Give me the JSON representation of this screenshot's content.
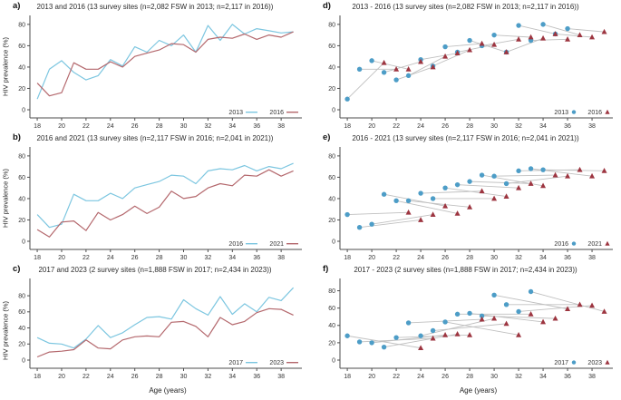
{
  "figure": {
    "xlabel": "Age (years)",
    "ylabel": "HIV prevalence (%)",
    "x_ticks": [
      18,
      20,
      22,
      24,
      26,
      28,
      30,
      32,
      34,
      36,
      38
    ],
    "y_ticks": [
      0,
      20,
      40,
      60,
      80
    ],
    "colors": {
      "line_blue": "#7cc6e0",
      "line_red": "#b4686d",
      "point_blue": "#4d9dc7",
      "point_red": "#9d3540",
      "link_gray": "#c0c0c0",
      "axis": "#4d4d4d",
      "tick_label": "#333333"
    }
  },
  "chart_data": [
    {
      "panel_label": "a)",
      "type": "line",
      "title": "2013 and 2016 (13 survey sites (n=2,082 FSW in 2013; n=2,117 in 2016))",
      "xlabel": "Age (years)",
      "ylabel": "HIV prevalence (%)",
      "ylim": [
        0,
        85
      ],
      "x": [
        18,
        19,
        20,
        21,
        22,
        23,
        24,
        25,
        26,
        27,
        28,
        29,
        30,
        31,
        32,
        33,
        34,
        35,
        36,
        37,
        38,
        39
      ],
      "series": [
        {
          "name": "2013",
          "color": "#7cc6e0",
          "values": [
            10,
            38,
            46,
            35,
            28,
            32,
            47,
            41,
            59,
            54,
            65,
            60,
            70,
            54,
            79,
            65,
            80,
            71,
            76,
            74,
            72,
            73
          ]
        },
        {
          "name": "2016",
          "color": "#b4686d",
          "values": [
            25,
            13,
            16,
            44,
            38,
            38,
            45,
            40,
            50,
            53,
            56,
            62,
            61,
            54,
            66,
            68,
            67,
            71,
            66,
            70,
            68,
            73
          ]
        }
      ]
    },
    {
      "panel_label": "b)",
      "type": "line",
      "title": "2016 and 2021 (13 survey sites (n=2,117 FSW in 2016; n=2,041 in 2021))",
      "xlabel": "Age (years)",
      "ylabel": "HIV prevalence (%)",
      "ylim": [
        0,
        85
      ],
      "x": [
        18,
        19,
        20,
        21,
        22,
        23,
        24,
        25,
        26,
        27,
        28,
        29,
        30,
        31,
        32,
        33,
        34,
        35,
        36,
        37,
        38,
        39
      ],
      "series": [
        {
          "name": "2016",
          "color": "#7cc6e0",
          "values": [
            25,
            13,
            16,
            44,
            38,
            38,
            45,
            40,
            50,
            53,
            56,
            62,
            61,
            54,
            66,
            68,
            67,
            71,
            66,
            70,
            68,
            73
          ]
        },
        {
          "name": "2021",
          "color": "#b4686d",
          "values": [
            11,
            4,
            18,
            19,
            10,
            27,
            20,
            25,
            33,
            26,
            32,
            47,
            40,
            42,
            50,
            54,
            52,
            62,
            61,
            67,
            61,
            66
          ]
        }
      ]
    },
    {
      "panel_label": "c)",
      "type": "line",
      "title": "2017 and 2023 (2 survey sites (n=1,888 FSW in 2017; n=2,434 in 2023))",
      "xlabel": "Age (years)",
      "ylabel": "HIV prevalence (%)",
      "ylim": [
        0,
        97
      ],
      "x": [
        18,
        19,
        20,
        21,
        22,
        23,
        24,
        25,
        26,
        27,
        28,
        29,
        30,
        31,
        32,
        33,
        34,
        35,
        36,
        37,
        38,
        39
      ],
      "series": [
        {
          "name": "2017",
          "color": "#7cc6e0",
          "values": [
            28,
            21,
            20,
            15,
            26,
            43,
            28,
            34,
            44,
            53,
            54,
            51,
            75,
            64,
            56,
            79,
            57,
            70,
            60,
            78,
            74,
            90
          ]
        },
        {
          "name": "2023",
          "color": "#b4686d",
          "values": [
            4,
            10,
            11,
            13,
            25,
            15,
            14,
            25,
            29,
            30,
            29,
            47,
            48,
            42,
            29,
            53,
            44,
            48,
            59,
            64,
            63,
            56
          ]
        }
      ]
    },
    {
      "panel_label": "d)",
      "type": "scatter",
      "title": "2013 - 2016 (13 survey sites (n=2,082 FSW in 2013; n=2,117 in 2016))",
      "xlabel": "Age (years)",
      "cohort_offset_years": 3,
      "ylim": [
        0,
        85
      ],
      "series": [
        {
          "name": "2013",
          "marker": "circle",
          "color": "#4d9dc7",
          "ages": [
            18,
            19,
            20,
            21,
            22,
            23,
            24,
            25,
            26,
            27,
            28,
            29,
            30,
            31,
            32,
            33,
            34,
            35,
            36
          ],
          "values": [
            10,
            38,
            46,
            35,
            28,
            32,
            47,
            41,
            59,
            54,
            65,
            60,
            70,
            54,
            79,
            65,
            80,
            71,
            76
          ]
        },
        {
          "name": "2016",
          "marker": "triangle",
          "color": "#9d3540",
          "ages": [
            21,
            22,
            23,
            24,
            25,
            26,
            27,
            28,
            29,
            30,
            31,
            32,
            33,
            34,
            35,
            36,
            37,
            38,
            39
          ],
          "values": [
            44,
            38,
            38,
            45,
            40,
            50,
            53,
            56,
            62,
            61,
            54,
            66,
            68,
            67,
            71,
            66,
            70,
            68,
            73
          ]
        }
      ]
    },
    {
      "panel_label": "e)",
      "type": "scatter",
      "title": "2016 - 2021 (13 survey sites (n=2,117 FSW in 2016; n=2,041 in 2021))",
      "xlabel": "Age (years)",
      "cohort_offset_years": 5,
      "ylim": [
        0,
        85
      ],
      "series": [
        {
          "name": "2016",
          "marker": "circle",
          "color": "#4d9dc7",
          "ages": [
            18,
            19,
            20,
            21,
            22,
            23,
            24,
            25,
            26,
            27,
            28,
            29,
            30,
            31,
            32,
            33,
            34
          ],
          "values": [
            25,
            13,
            16,
            44,
            38,
            38,
            45,
            40,
            50,
            53,
            56,
            62,
            61,
            54,
            66,
            68,
            67
          ]
        },
        {
          "name": "2021",
          "marker": "triangle",
          "color": "#9d3540",
          "ages": [
            23,
            24,
            25,
            26,
            27,
            28,
            29,
            30,
            31,
            32,
            33,
            34,
            35,
            36,
            37,
            38,
            39
          ],
          "values": [
            27,
            20,
            25,
            33,
            26,
            32,
            47,
            40,
            42,
            50,
            54,
            52,
            62,
            61,
            67,
            61,
            66
          ]
        }
      ]
    },
    {
      "panel_label": "f)",
      "type": "scatter",
      "title": "2017 - 2023 (2 survey sites (n=1,888 FSW in 2017; n=2,434 in 2023))",
      "xlabel": "Age (years)",
      "cohort_offset_years": 6,
      "ylim": [
        0,
        90
      ],
      "series": [
        {
          "name": "2017",
          "marker": "circle",
          "color": "#4d9dc7",
          "ages": [
            18,
            19,
            20,
            21,
            22,
            23,
            24,
            25,
            26,
            27,
            28,
            29,
            30,
            31,
            32,
            33
          ],
          "values": [
            28,
            21,
            20,
            15,
            26,
            43,
            28,
            34,
            44,
            53,
            54,
            51,
            75,
            64,
            56,
            79
          ]
        },
        {
          "name": "2023",
          "marker": "triangle",
          "color": "#9d3540",
          "ages": [
            24,
            25,
            26,
            27,
            28,
            29,
            30,
            31,
            32,
            33,
            34,
            35,
            36,
            37,
            38,
            39
          ],
          "values": [
            14,
            25,
            29,
            30,
            29,
            47,
            48,
            42,
            29,
            53,
            44,
            48,
            59,
            64,
            63,
            56
          ]
        }
      ]
    }
  ]
}
